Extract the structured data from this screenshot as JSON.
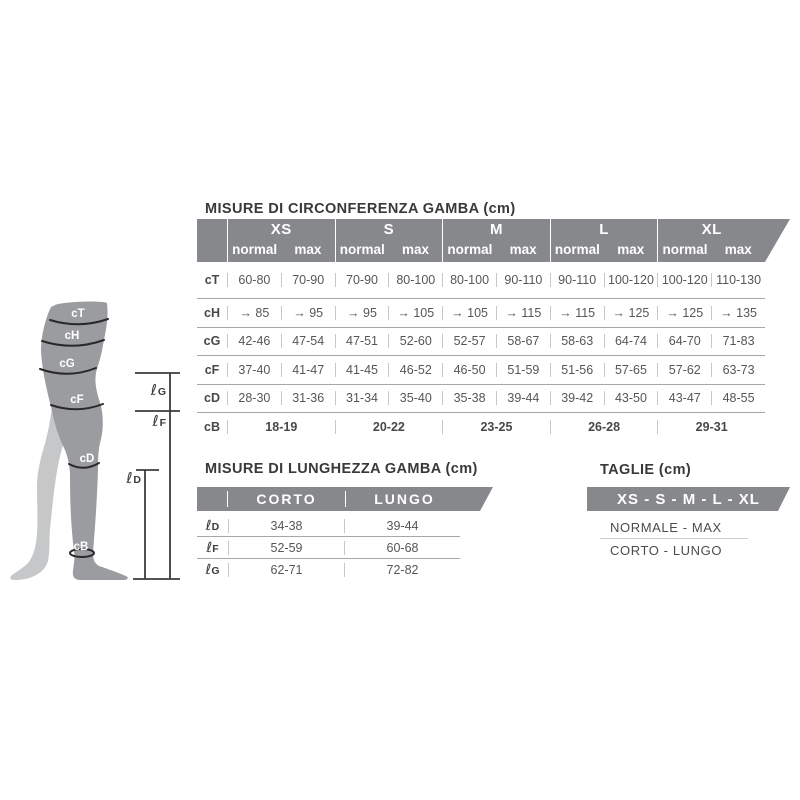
{
  "colors": {
    "band_gray": "#87888c",
    "title_text": "#38393b",
    "body_text": "#55565a",
    "grid_horizontal": "#a6a7a9",
    "grid_vertical": "#c6c7c9",
    "leg_front": "#9b9c9f",
    "leg_back": "#c6c7c9",
    "arc_stroke": "#29292b",
    "measure_line": "#3a3b3d"
  },
  "leg_diagram": {
    "circumference_labels": [
      "cT",
      "cH",
      "cG",
      "cF",
      "cD",
      "cB"
    ],
    "length_labels": [
      {
        "prefix": "ℓ",
        "letter": "G"
      },
      {
        "prefix": "ℓ",
        "letter": "F"
      },
      {
        "prefix": "ℓ",
        "letter": "D"
      }
    ]
  },
  "circumference_table": {
    "title": "MISURE DI CIRCONFERENZA GAMBA (cm)",
    "sizes": [
      "XS",
      "S",
      "M",
      "L",
      "XL"
    ],
    "sub_columns": [
      "normal",
      "max"
    ],
    "rows": [
      {
        "label": "cT",
        "values": [
          "60-80",
          "70-90",
          "70-90",
          "80-100",
          "80-100",
          "90-110",
          "90-110",
          "100-120",
          "100-120",
          "110-130"
        ]
      },
      {
        "label": "cH",
        "values": [
          "→ 85",
          "→ 95",
          "→ 95",
          "→ 105",
          "→ 105",
          "→ 115",
          "→ 115",
          "→ 125",
          "→ 125",
          "→ 135"
        ]
      },
      {
        "label": "cG",
        "values": [
          "42-46",
          "47-54",
          "47-51",
          "52-60",
          "52-57",
          "58-67",
          "58-63",
          "64-74",
          "64-70",
          "71-83"
        ]
      },
      {
        "label": "cF",
        "values": [
          "37-40",
          "41-47",
          "41-45",
          "46-52",
          "46-50",
          "51-59",
          "51-56",
          "57-65",
          "57-62",
          "63-73"
        ]
      },
      {
        "label": "cD",
        "values": [
          "28-30",
          "31-36",
          "31-34",
          "35-40",
          "35-38",
          "39-44",
          "39-42",
          "43-50",
          "43-47",
          "48-55"
        ]
      }
    ],
    "span_row": {
      "label": "cB",
      "values": [
        "18-19",
        "20-22",
        "23-25",
        "26-28",
        "29-31"
      ]
    }
  },
  "length_table": {
    "title": "MISURE DI LUNGHEZZA GAMBA (cm)",
    "columns": [
      "CORTO",
      "LUNGO"
    ],
    "rows": [
      {
        "prefix": "ℓ",
        "letter": "D",
        "values": [
          "34-38",
          "39-44"
        ]
      },
      {
        "prefix": "ℓ",
        "letter": "F",
        "values": [
          "52-59",
          "60-68"
        ]
      },
      {
        "prefix": "ℓ",
        "letter": "G",
        "values": [
          "62-71",
          "72-82"
        ]
      }
    ]
  },
  "sizes_panel": {
    "title": "TAGLIE (cm)",
    "band": "XS - S - M - L - XL",
    "line1": "NORMALE - MAX",
    "line2": "CORTO - LUNGO"
  }
}
